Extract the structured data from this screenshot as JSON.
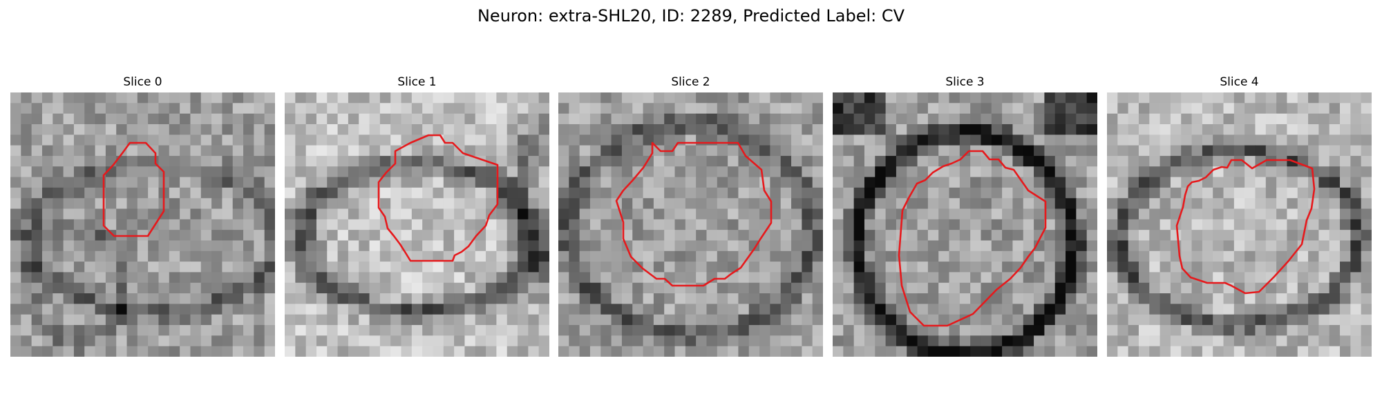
{
  "figure": {
    "title": "Neuron: extra-SHL20, ID: 2289, Predicted Label: CV",
    "contour_color": "#e6191c"
  },
  "slices": [
    {
      "title": "Slice 0",
      "image": "grayscale-em-patch",
      "contour": "red-outline"
    },
    {
      "title": "Slice 1",
      "image": "grayscale-em-patch",
      "contour": "red-outline"
    },
    {
      "title": "Slice 2",
      "image": "grayscale-em-patch",
      "contour": "red-outline"
    },
    {
      "title": "Slice 3",
      "image": "grayscale-em-patch",
      "contour": "red-outline"
    },
    {
      "title": "Slice 4",
      "image": "grayscale-em-patch",
      "contour": "red-outline"
    }
  ]
}
